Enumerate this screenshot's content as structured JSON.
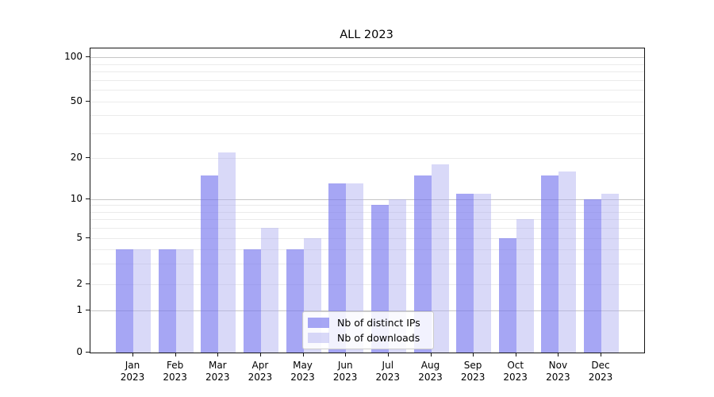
{
  "chart_data": {
    "type": "bar",
    "title": "ALL 2023",
    "categories": [
      "Jan",
      "Feb",
      "Mar",
      "Apr",
      "May",
      "Jun",
      "Jul",
      "Aug",
      "Sep",
      "Oct",
      "Nov",
      "Dec"
    ],
    "category_year": "2023",
    "series": [
      {
        "name": "Nb of distinct IPs",
        "color": "rgba(119,119,238,0.65)",
        "values": [
          4,
          4,
          15,
          4,
          4,
          13,
          9,
          15,
          11,
          5,
          15,
          10
        ]
      },
      {
        "name": "Nb of downloads",
        "color": "rgba(170,170,240,0.45)",
        "values": [
          4,
          4,
          22,
          6,
          5,
          13,
          10,
          18,
          11,
          7,
          16,
          11
        ]
      }
    ],
    "y_axis": {
      "scale": "symlog",
      "tick_values": [
        0,
        1,
        2,
        5,
        10,
        20,
        50,
        100
      ],
      "tick_labels": [
        "0",
        "1",
        "2",
        "5",
        "10",
        "20",
        "50",
        "100"
      ],
      "range": [
        0,
        100
      ]
    },
    "grid": "on",
    "legend_position": "lower center",
    "colors": {
      "distinct_ips_bar": "#a7a7f3",
      "downloads_bar": "#d9d9f9",
      "major_gridline": "#c6c6c6",
      "minor_gridline": "#ebebeb",
      "axis": "#141414"
    }
  }
}
